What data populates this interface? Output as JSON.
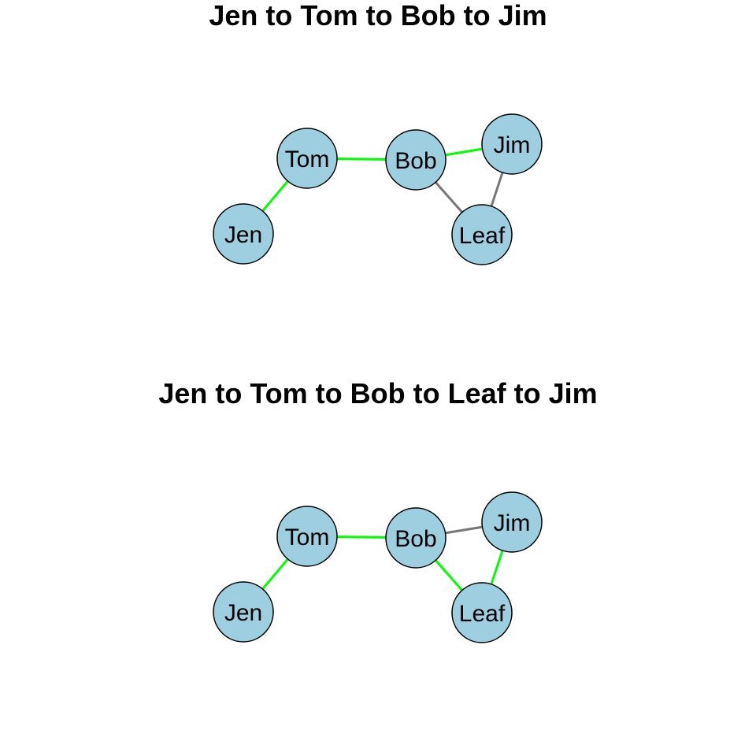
{
  "colors": {
    "node_fill": "#9ecfe0",
    "node_stroke": "#000000",
    "edge_default": "#777777",
    "edge_path": "#00ff00",
    "background": "#ffffff"
  },
  "panels": [
    {
      "title": "Jen to Tom to Bob to Jim",
      "nodes": [
        "Tom",
        "Bob",
        "Jim",
        "Jen",
        "Leaf"
      ],
      "edges": [
        {
          "from": "Jen",
          "to": "Tom",
          "highlighted": true
        },
        {
          "from": "Tom",
          "to": "Bob",
          "highlighted": true
        },
        {
          "from": "Bob",
          "to": "Jim",
          "highlighted": true
        },
        {
          "from": "Bob",
          "to": "Leaf",
          "highlighted": false
        },
        {
          "from": "Jim",
          "to": "Leaf",
          "highlighted": false
        }
      ]
    },
    {
      "title": "Jen to Tom to Bob to Leaf to Jim",
      "nodes": [
        "Tom",
        "Bob",
        "Jim",
        "Jen",
        "Leaf"
      ],
      "edges": [
        {
          "from": "Jen",
          "to": "Tom",
          "highlighted": true
        },
        {
          "from": "Tom",
          "to": "Bob",
          "highlighted": true
        },
        {
          "from": "Bob",
          "to": "Jim",
          "highlighted": false
        },
        {
          "from": "Bob",
          "to": "Leaf",
          "highlighted": true
        },
        {
          "from": "Jim",
          "to": "Leaf",
          "highlighted": true
        }
      ]
    }
  ]
}
